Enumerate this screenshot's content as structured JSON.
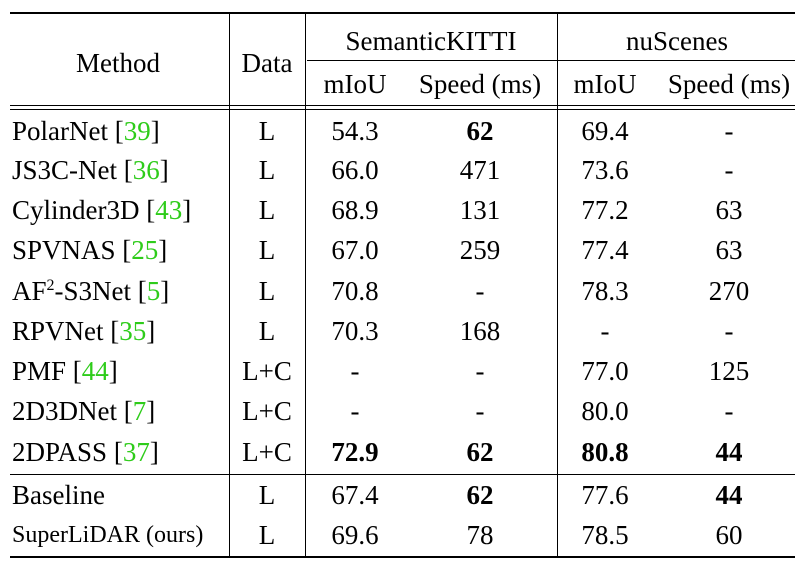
{
  "header": {
    "method": "Method",
    "data": "Data",
    "groups": [
      "SemanticKITTI",
      "nuScenes"
    ],
    "sub": [
      "mIoU",
      "Speed (ms)",
      "mIoU",
      "Speed (ms)"
    ]
  },
  "rows": [
    {
      "name": "PolarNet",
      "ref": "39",
      "data": "L",
      "sk_miou": "54.3",
      "sk_speed": "62",
      "ns_miou": "69.4",
      "ns_speed": "-"
    },
    {
      "name": "JS3C-Net",
      "ref": "36",
      "data": "L",
      "sk_miou": "66.0",
      "sk_speed": "471",
      "ns_miou": "73.6",
      "ns_speed": "-"
    },
    {
      "name": "Cylinder3D",
      "ref": "43",
      "data": "L",
      "sk_miou": "68.9",
      "sk_speed": "131",
      "ns_miou": "77.2",
      "ns_speed": "63"
    },
    {
      "name": "SPVNAS",
      "ref": "25",
      "data": "L",
      "sk_miou": "67.0",
      "sk_speed": "259",
      "ns_miou": "77.4",
      "ns_speed": "63"
    },
    {
      "name_pre": "AF",
      "name_sup": "2",
      "name_post": "-S3Net",
      "ref": "5",
      "data": "L",
      "sk_miou": "70.8",
      "sk_speed": "-",
      "ns_miou": "78.3",
      "ns_speed": "270"
    },
    {
      "name": "RPVNet",
      "ref": "35",
      "data": "L",
      "sk_miou": "70.3",
      "sk_speed": "168",
      "ns_miou": "-",
      "ns_speed": "-"
    },
    {
      "name": "PMF",
      "ref": "44",
      "data": "L+C",
      "sk_miou": "-",
      "sk_speed": "-",
      "ns_miou": "77.0",
      "ns_speed": "125"
    },
    {
      "name": "2D3DNet",
      "ref": "7",
      "data": "L+C",
      "sk_miou": "-",
      "sk_speed": "-",
      "ns_miou": "80.0",
      "ns_speed": "-"
    },
    {
      "name": "2DPASS",
      "ref": "37",
      "data": "L+C",
      "sk_miou": "72.9",
      "sk_speed": "62",
      "ns_miou": "80.8",
      "ns_speed": "44"
    },
    {
      "name": "Baseline",
      "data": "L",
      "sk_miou": "67.4",
      "sk_speed": "62",
      "ns_miou": "77.6",
      "ns_speed": "44"
    },
    {
      "name": "SuperLiDAR (ours)",
      "data": "L",
      "sk_miou": "69.6",
      "sk_speed": "78",
      "ns_miou": "78.5",
      "ns_speed": "60"
    }
  ]
}
